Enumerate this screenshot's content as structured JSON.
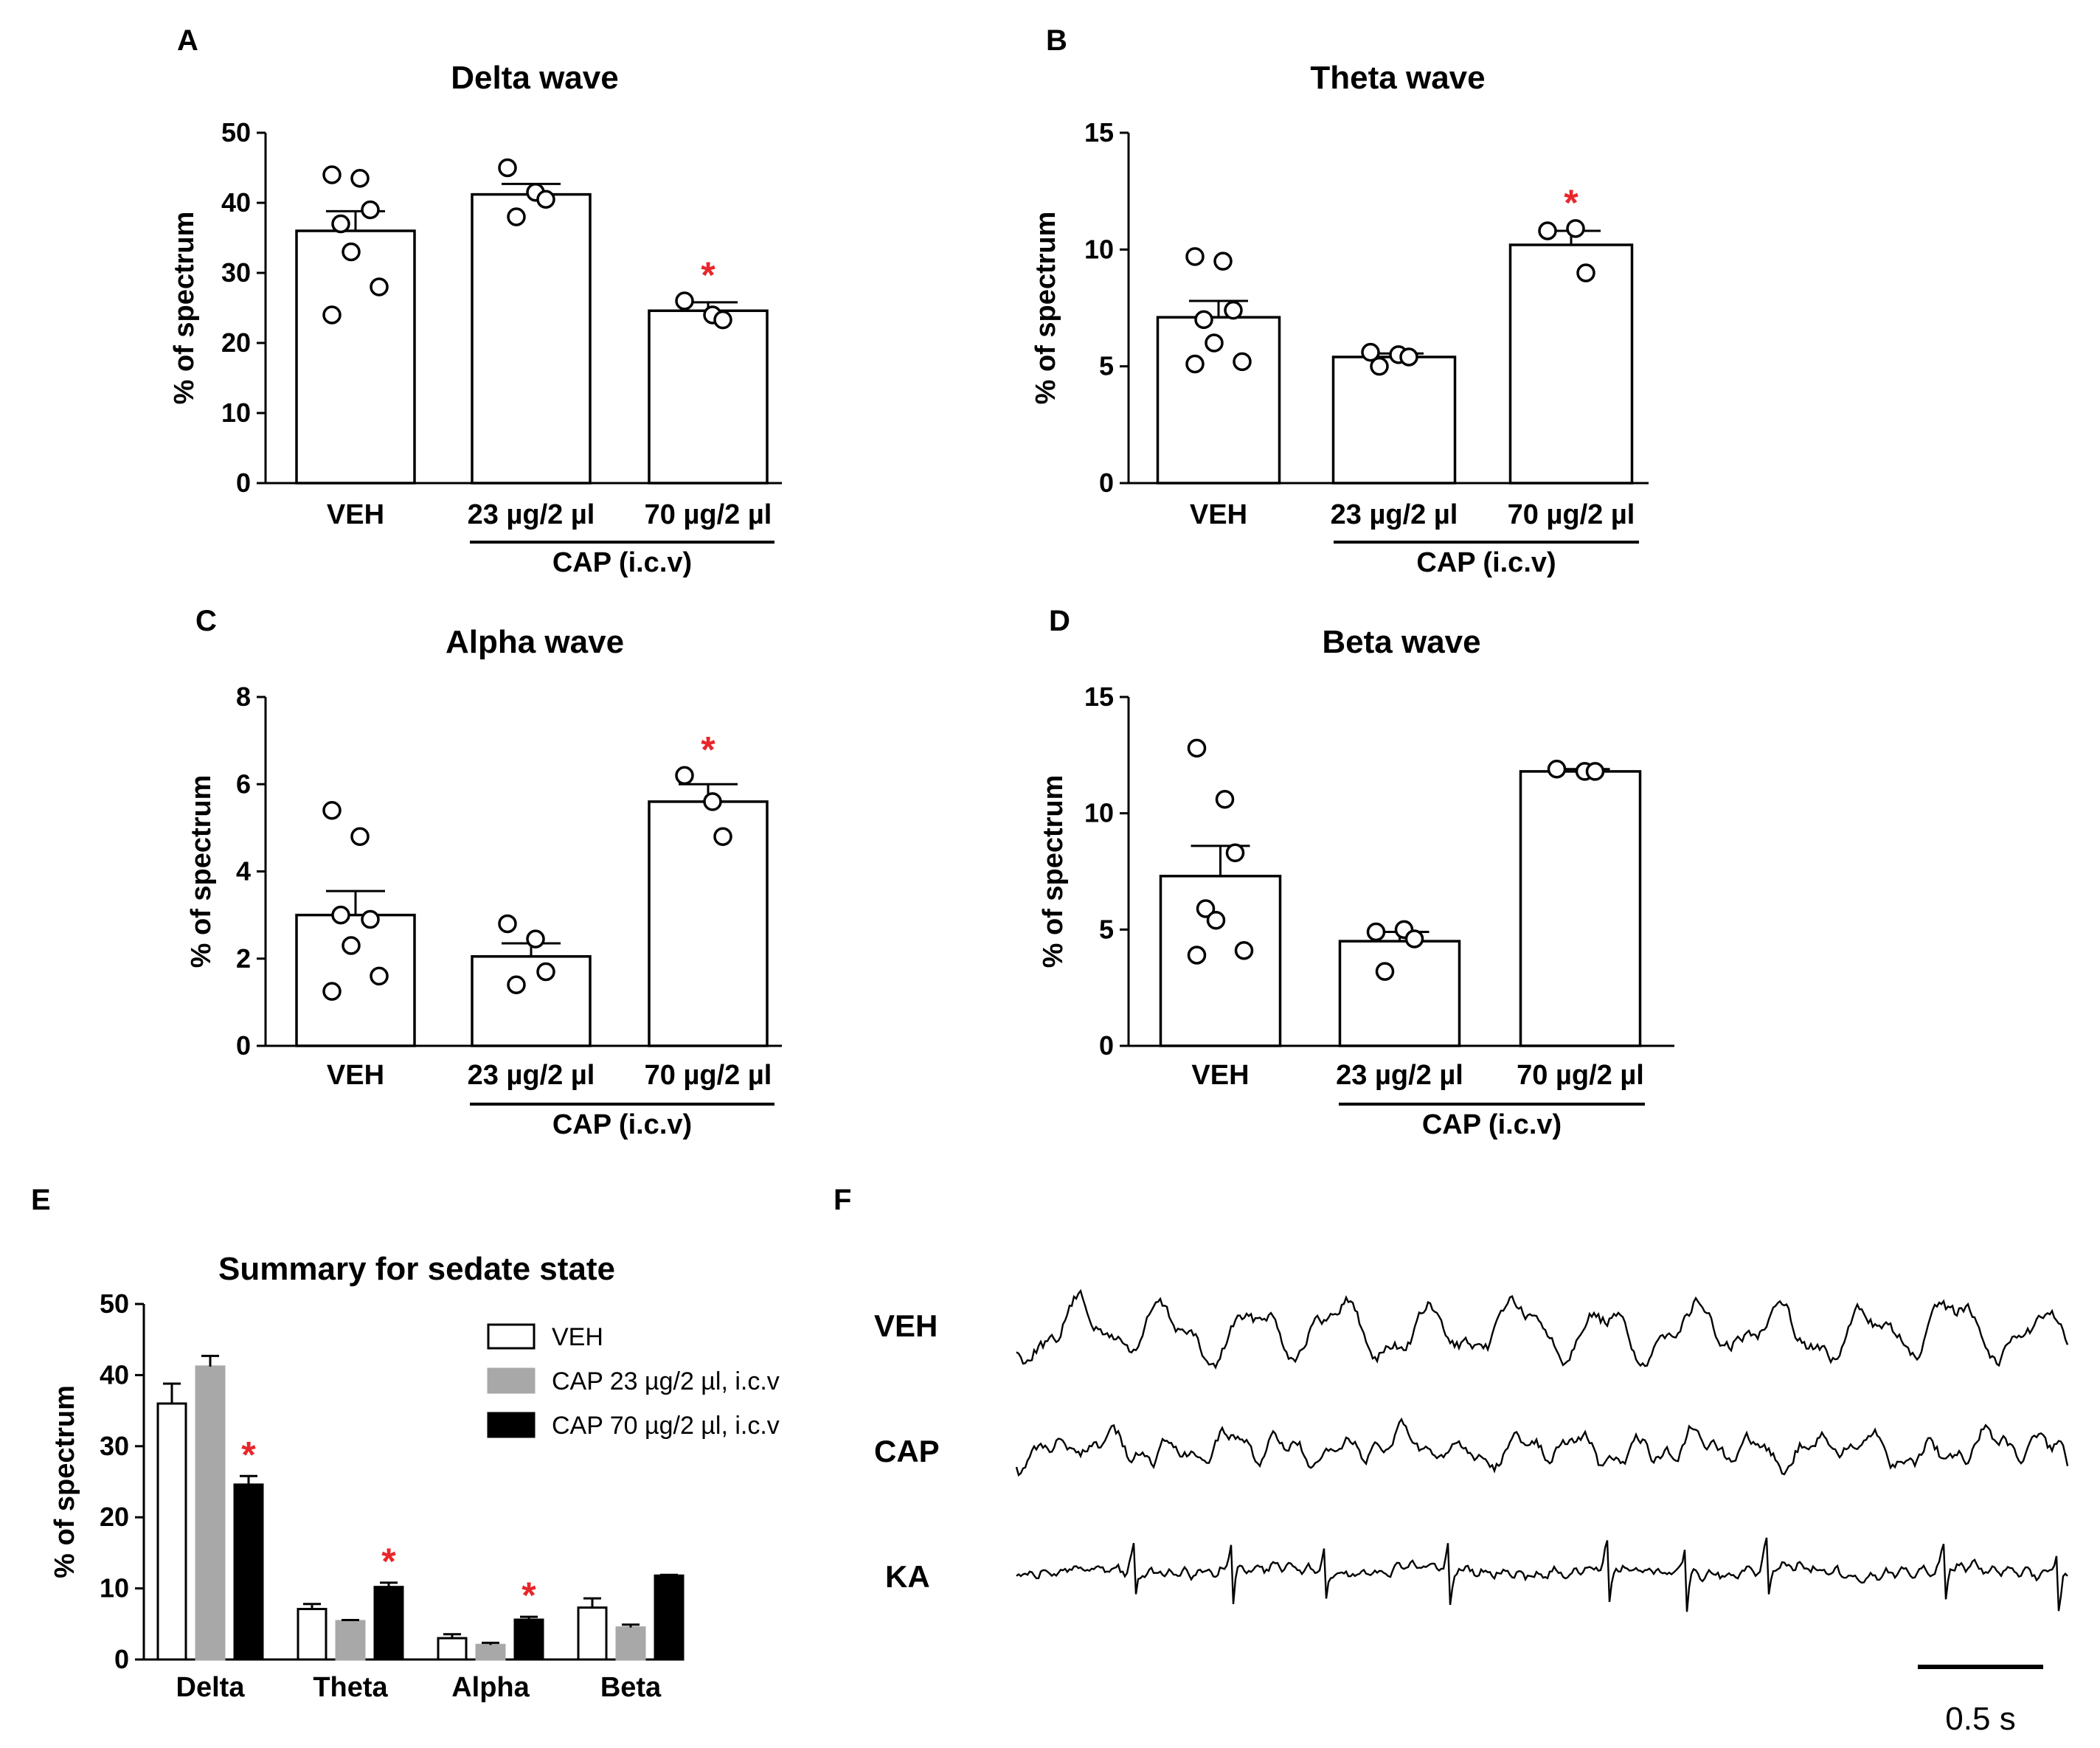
{
  "figure": {
    "panel_labels": [
      "A",
      "B",
      "C",
      "D",
      "E",
      "F"
    ]
  },
  "chart_data": [
    {
      "panel": "A",
      "type": "bar",
      "title": "Delta wave",
      "ylabel": "% of spectrum",
      "ylim": [
        0,
        50
      ],
      "yticks": [
        "0",
        "10",
        "20",
        "30",
        "40",
        "50"
      ],
      "categories": [
        "VEH",
        "23 µg/2 µl",
        "70 µg/2 µl"
      ],
      "group_label": "CAP (i.c.v)",
      "means": [
        36,
        41.2,
        24.6
      ],
      "sem": [
        2.8,
        1.5,
        1.2
      ],
      "points": [
        [
          44,
          43.5,
          39,
          37,
          33,
          28,
          24
        ],
        [
          45,
          41.5,
          40.5,
          38
        ],
        [
          26,
          24,
          23.3
        ]
      ],
      "significance": [
        "",
        "",
        "*"
      ]
    },
    {
      "panel": "B",
      "type": "bar",
      "title": "Theta wave",
      "ylabel": "% of spectrum",
      "ylim": [
        0,
        15
      ],
      "yticks": [
        "0",
        "5",
        "10",
        "15"
      ],
      "categories": [
        "VEH",
        "23 µg/2 µl",
        "70 µg/2 µl"
      ],
      "group_label": "CAP (i.c.v)",
      "means": [
        7.1,
        5.4,
        10.2
      ],
      "sem": [
        0.7,
        0.15,
        0.6
      ],
      "points": [
        [
          9.7,
          9.5,
          7.4,
          7.0,
          6.0,
          5.2,
          5.1
        ],
        [
          5.6,
          5.5,
          5.4,
          5.0
        ],
        [
          10.8,
          10.9,
          9.0
        ]
      ],
      "significance": [
        "",
        "",
        "*"
      ]
    },
    {
      "panel": "C",
      "type": "bar",
      "title": "Alpha wave",
      "ylabel": "% of spectrum",
      "ylim": [
        0,
        8
      ],
      "yticks": [
        "0",
        "2",
        "4",
        "6",
        "8"
      ],
      "categories": [
        "VEH",
        "23 µg/2 µl",
        "70 µg/2 µl"
      ],
      "group_label": "CAP (i.c.v)",
      "means": [
        3.0,
        2.05,
        5.6
      ],
      "sem": [
        0.55,
        0.3,
        0.4
      ],
      "points": [
        [
          5.4,
          4.8,
          2.9,
          3.0,
          2.3,
          1.6,
          1.25
        ],
        [
          2.8,
          2.45,
          1.7,
          1.4
        ],
        [
          6.2,
          5.6,
          4.8
        ]
      ],
      "significance": [
        "",
        "",
        "*"
      ]
    },
    {
      "panel": "D",
      "type": "bar",
      "title": "Beta wave",
      "ylabel": "% of spectrum",
      "ylim": [
        0,
        15
      ],
      "yticks": [
        "0",
        "5",
        "10",
        "15"
      ],
      "categories": [
        "VEH",
        "23 µg/2 µl",
        "70 µg/2 µl"
      ],
      "group_label": "CAP (i.c.v)",
      "means": [
        7.3,
        4.5,
        11.8
      ],
      "sem": [
        1.3,
        0.4,
        0.1
      ],
      "points": [
        [
          12.8,
          10.6,
          8.3,
          5.9,
          5.4,
          4.1,
          3.9
        ],
        [
          4.9,
          5.0,
          4.6,
          3.2
        ],
        [
          11.9,
          11.8,
          11.8
        ]
      ],
      "significance": [
        "",
        "",
        ""
      ]
    },
    {
      "panel": "E",
      "type": "bar",
      "title": "Summary for sedate state",
      "ylabel": "% of spectrum",
      "ylim": [
        0,
        50
      ],
      "yticks": [
        "0",
        "10",
        "20",
        "30",
        "40",
        "50"
      ],
      "categories": [
        "Delta",
        "Theta",
        "Alpha",
        "Beta"
      ],
      "series": [
        {
          "name": "VEH",
          "color": "#ffffff",
          "values": [
            36,
            7.1,
            3.0,
            7.3
          ],
          "sem": [
            2.8,
            0.7,
            0.55,
            1.3
          ]
        },
        {
          "name": "CAP 23 µg/2 µl, i.c.v",
          "color": "#a8a8a8",
          "values": [
            41.2,
            5.4,
            2.05,
            4.5
          ],
          "sem": [
            1.5,
            0.15,
            0.3,
            0.4
          ]
        },
        {
          "name": "CAP 70 µg/2 µl, i.c.v",
          "color": "#000000",
          "values": [
            24.6,
            10.2,
            5.6,
            11.8
          ],
          "sem": [
            1.2,
            0.6,
            0.4,
            0.1
          ]
        }
      ],
      "significance": [
        [
          "",
          "",
          "*"
        ],
        [
          "",
          "",
          "*"
        ],
        [
          "",
          "",
          "*"
        ],
        [
          "",
          "",
          ""
        ]
      ]
    }
  ],
  "traces": {
    "labels": [
      "VEH",
      "CAP",
      "KA"
    ],
    "scale_bar_label": "0.5 s",
    "scale_bar_seconds": 0.5
  },
  "colors": {
    "significance": "#e8262b"
  }
}
